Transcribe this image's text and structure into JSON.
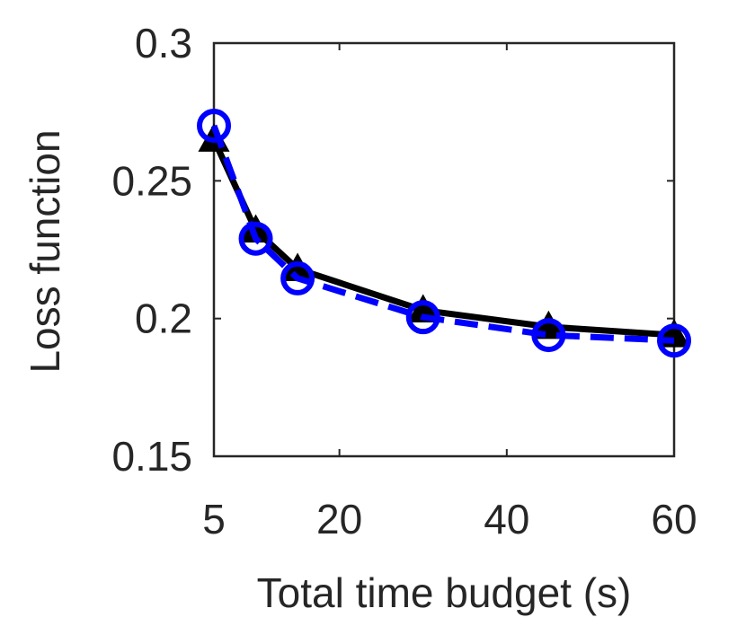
{
  "chart_data": {
    "type": "line",
    "x_label": "Total time budget (s)",
    "y_label": "Loss function",
    "x": [
      5,
      10,
      15,
      30,
      45,
      60
    ],
    "series": [
      {
        "color": "#000000",
        "marker": "triangle",
        "dash": "solid",
        "values": [
          0.265,
          0.232,
          0.218,
          0.203,
          0.197,
          0.194
        ]
      },
      {
        "color": "#0000ff",
        "marker": "circle",
        "dash": "dashed",
        "values": [
          0.27,
          0.229,
          0.2146,
          0.2005,
          0.194,
          0.192
        ]
      }
    ],
    "xlim": [
      5,
      60
    ],
    "xticks": [
      5,
      20,
      40,
      60
    ],
    "ylim": [
      0.15,
      0.3
    ],
    "yticks": [
      0.15,
      0.2,
      0.25,
      0.3
    ]
  }
}
